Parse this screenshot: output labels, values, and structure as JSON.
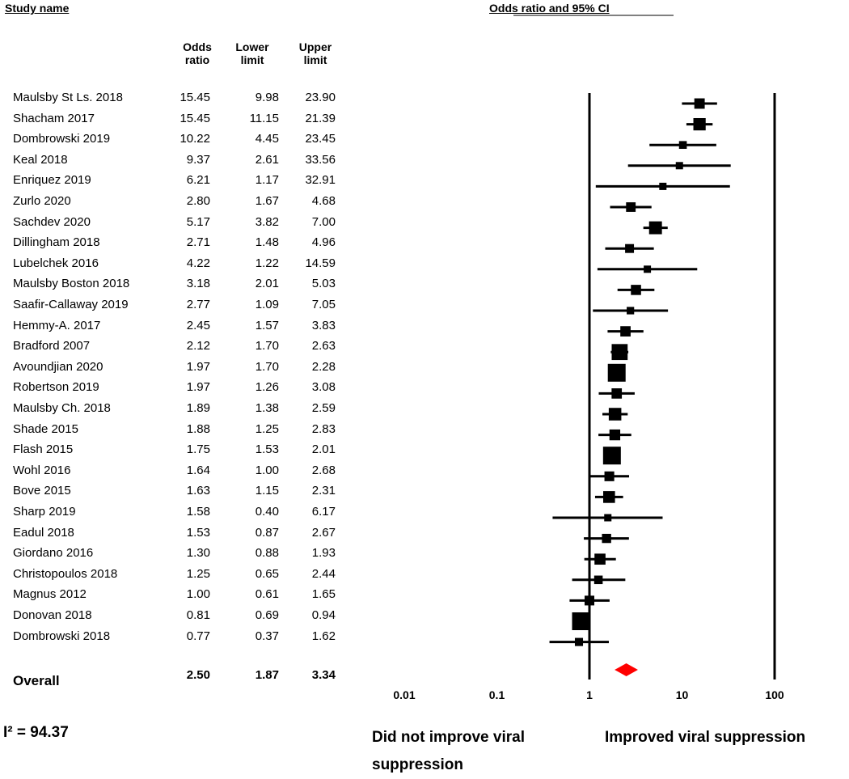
{
  "headers": {
    "study": "Study name",
    "plot": "Odds ratio and 95% CI",
    "col_or": [
      "Odds",
      "ratio"
    ],
    "col_lower": [
      "Lower",
      "limit"
    ],
    "col_upper": [
      "Upper",
      "limit"
    ]
  },
  "chart_data": {
    "type": "forest",
    "x_scale": "log",
    "xlim": [
      0.01,
      100
    ],
    "ticks": [
      "0.01",
      "0.1",
      "1",
      "10",
      "100"
    ],
    "reference_line": 1,
    "studies": [
      {
        "name": "Maulsby St Ls. 2018",
        "or": "15.45",
        "lower": "9.98",
        "upper": "23.90"
      },
      {
        "name": "Shacham 2017",
        "or": "15.45",
        "lower": "11.15",
        "upper": "21.39"
      },
      {
        "name": "Dombrowski 2019",
        "or": "10.22",
        "lower": "4.45",
        "upper": "23.45"
      },
      {
        "name": "Keal 2018",
        "or": "9.37",
        "lower": "2.61",
        "upper": "33.56"
      },
      {
        "name": "Enriquez 2019",
        "or": "6.21",
        "lower": "1.17",
        "upper": "32.91"
      },
      {
        "name": "Zurlo 2020",
        "or": "2.80",
        "lower": "1.67",
        "upper": "4.68"
      },
      {
        "name": "Sachdev 2020",
        "or": "5.17",
        "lower": "3.82",
        "upper": "7.00"
      },
      {
        "name": "Dillingham 2018",
        "or": "2.71",
        "lower": "1.48",
        "upper": "4.96"
      },
      {
        "name": "Lubelchek 2016",
        "or": "4.22",
        "lower": "1.22",
        "upper": "14.59"
      },
      {
        "name": "Maulsby Boston 2018",
        "or": "3.18",
        "lower": "2.01",
        "upper": "5.03"
      },
      {
        "name": "Saafir-Callaway 2019",
        "or": "2.77",
        "lower": "1.09",
        "upper": "7.05"
      },
      {
        "name": "Hemmy-A. 2017",
        "or": "2.45",
        "lower": "1.57",
        "upper": "3.83"
      },
      {
        "name": "Bradford 2007",
        "or": "2.12",
        "lower": "1.70",
        "upper": "2.63"
      },
      {
        "name": "Avoundjian 2020",
        "or": "1.97",
        "lower": "1.70",
        "upper": "2.28"
      },
      {
        "name": "Robertson 2019",
        "or": "1.97",
        "lower": "1.26",
        "upper": "3.08"
      },
      {
        "name": "Maulsby Ch. 2018",
        "or": "1.89",
        "lower": "1.38",
        "upper": "2.59"
      },
      {
        "name": "Shade 2015",
        "or": "1.88",
        "lower": "1.25",
        "upper": "2.83"
      },
      {
        "name": "Flash 2015",
        "or": "1.75",
        "lower": "1.53",
        "upper": "2.01"
      },
      {
        "name": "Wohl 2016",
        "or": "1.64",
        "lower": "1.00",
        "upper": "2.68"
      },
      {
        "name": "Bove 2015",
        "or": "1.63",
        "lower": "1.15",
        "upper": "2.31"
      },
      {
        "name": "Sharp 2019",
        "or": "1.58",
        "lower": "0.40",
        "upper": "6.17"
      },
      {
        "name": "Eadul 2018",
        "or": "1.53",
        "lower": "0.87",
        "upper": "2.67"
      },
      {
        "name": "Giordano 2016",
        "or": "1.30",
        "lower": "0.88",
        "upper": "1.93"
      },
      {
        "name": "Christopoulos 2018",
        "or": "1.25",
        "lower": "0.65",
        "upper": "2.44"
      },
      {
        "name": "Magnus 2012",
        "or": "1.00",
        "lower": "0.61",
        "upper": "1.65"
      },
      {
        "name": "Donovan 2018",
        "or": "0.81",
        "lower": "0.69",
        "upper": "0.94"
      },
      {
        "name": "Dombrowski 2018",
        "or": "0.77",
        "lower": "0.37",
        "upper": "1.62"
      }
    ],
    "overall": {
      "name": "Overall",
      "or": "2.50",
      "lower": "1.87",
      "upper": "3.34"
    },
    "square_color": "#000000",
    "diamond_color": "#ff0000"
  },
  "footer": {
    "i2": "I² = 94.37",
    "left_label": [
      "Did not improve viral",
      "suppression"
    ],
    "right_label": "Improved viral suppression"
  }
}
